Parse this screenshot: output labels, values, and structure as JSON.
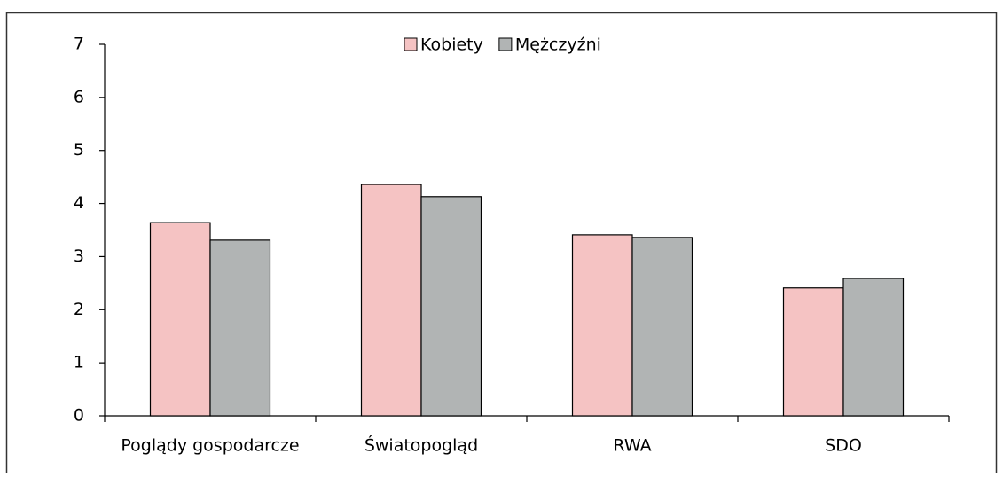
{
  "chart_data": {
    "type": "bar",
    "categories": [
      "Poglądy gospodarcze",
      "Światopogląd",
      "RWA",
      "SDO"
    ],
    "series": [
      {
        "name": "Kobiety",
        "color": "#f5c3c3",
        "values": [
          3.64,
          4.36,
          3.41,
          2.41
        ]
      },
      {
        "name": "Mężczyźni",
        "color": "#b1b4b4",
        "values": [
          3.31,
          4.13,
          3.36,
          2.59
        ]
      }
    ],
    "ylim": [
      0,
      7
    ],
    "yticks": [
      0,
      1,
      2,
      3,
      4,
      5,
      6,
      7
    ],
    "grid": false,
    "legend": "top"
  }
}
